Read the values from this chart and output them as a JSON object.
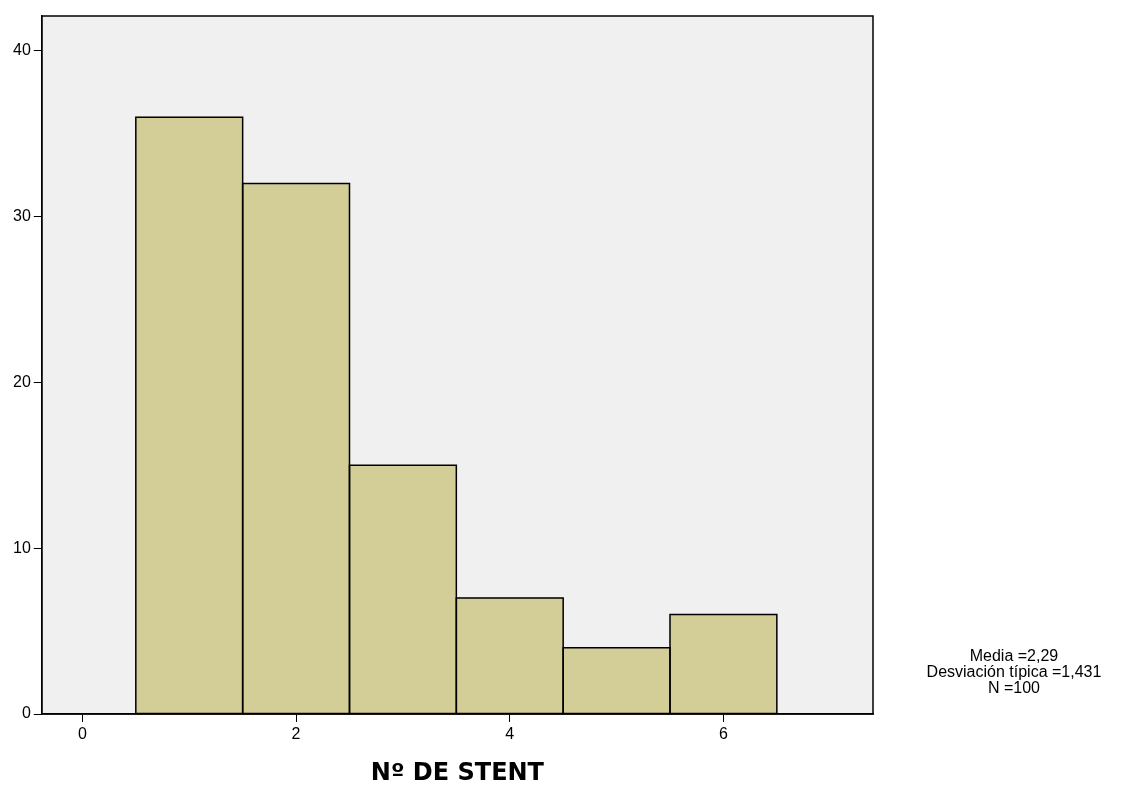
{
  "chart_data": {
    "type": "histogram",
    "xlabel": "Nº DE STENT",
    "bins": [
      0.5,
      1.5,
      2.5,
      3.5,
      4.5,
      5.5,
      6.5
    ],
    "values": [
      36,
      32,
      15,
      7,
      4,
      6
    ],
    "color": "#d3ce97",
    "xlim": [
      -0.38,
      7.4
    ],
    "xticks": [
      0,
      2,
      4,
      6
    ],
    "ylim": [
      0,
      42.1
    ],
    "yticks": [
      0,
      10,
      20,
      30,
      40
    ],
    "grid": false,
    "legend": false,
    "annotations": [
      "Media =2,29",
      "Desviación típica =1,431",
      "N =100"
    ]
  }
}
